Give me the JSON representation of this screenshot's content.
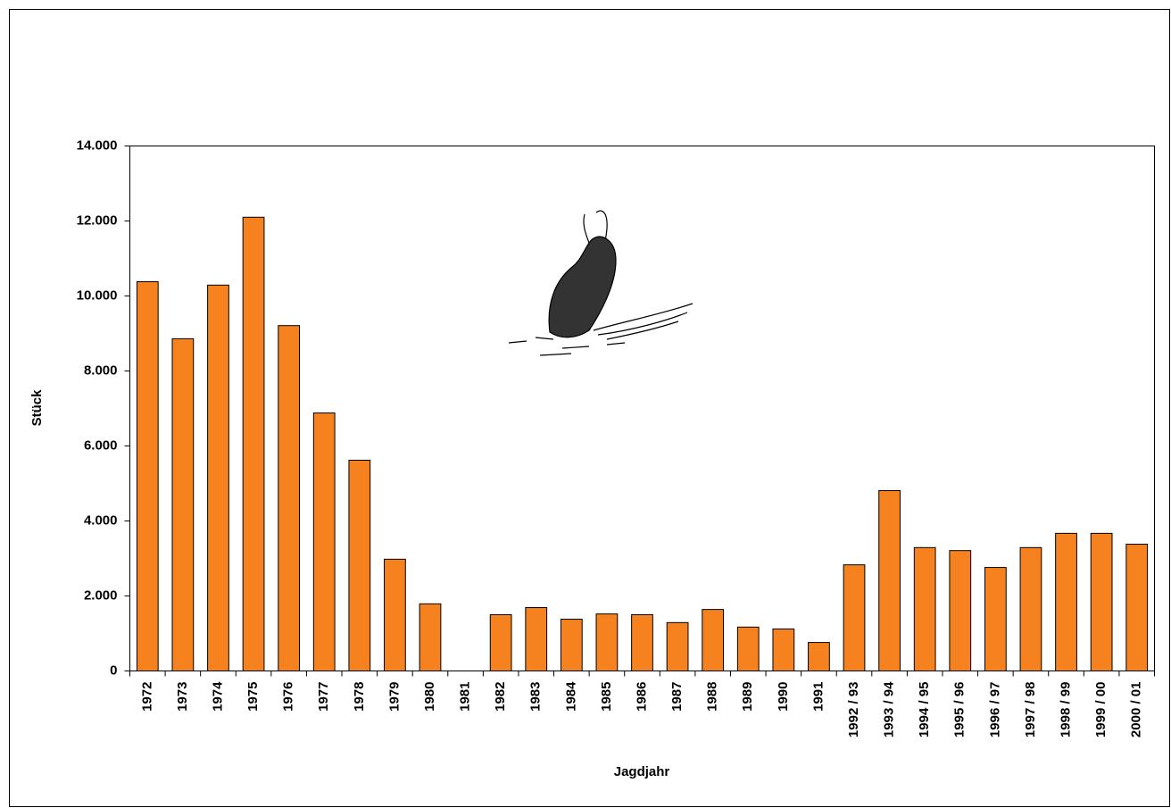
{
  "chart_data": {
    "type": "bar",
    "categories": [
      "1972",
      "1973",
      "1974",
      "1975",
      "1976",
      "1977",
      "1978",
      "1979",
      "1980",
      "1981",
      "1982",
      "1983",
      "1984",
      "1985",
      "1986",
      "1987",
      "1988",
      "1989",
      "1990",
      "1991",
      "1992 / 93",
      "1993 / 94",
      "1994 / 95",
      "1995 / 96",
      "1996 / 97",
      "1997 / 98",
      "1998 / 99",
      "1999 / 00",
      "2000 / 01"
    ],
    "values": [
      10380,
      8860,
      10290,
      12100,
      9210,
      6880,
      5620,
      2980,
      1790,
      0,
      1500,
      1690,
      1380,
      1520,
      1500,
      1290,
      1640,
      1170,
      1120,
      760,
      2830,
      4810,
      3290,
      3210,
      2760,
      3290,
      3670,
      3670,
      3380
    ],
    "color": "#f5821f",
    "x_label": "Jagdjahr",
    "y_label": "Stück",
    "ylim": [
      0,
      14000
    ],
    "yticks": [
      0,
      {
        "value": 2000,
        "label": "2.000"
      },
      {
        "value": 4000,
        "label": "4.000"
      },
      {
        "value": 6000,
        "label": "6.000"
      },
      {
        "value": 8000,
        "label": "8.000"
      },
      {
        "value": 10000,
        "label": "10.000"
      },
      {
        "value": 12000,
        "label": "12.000"
      },
      {
        "value": 14000,
        "label": "14.000"
      }
    ],
    "grid": false
  }
}
